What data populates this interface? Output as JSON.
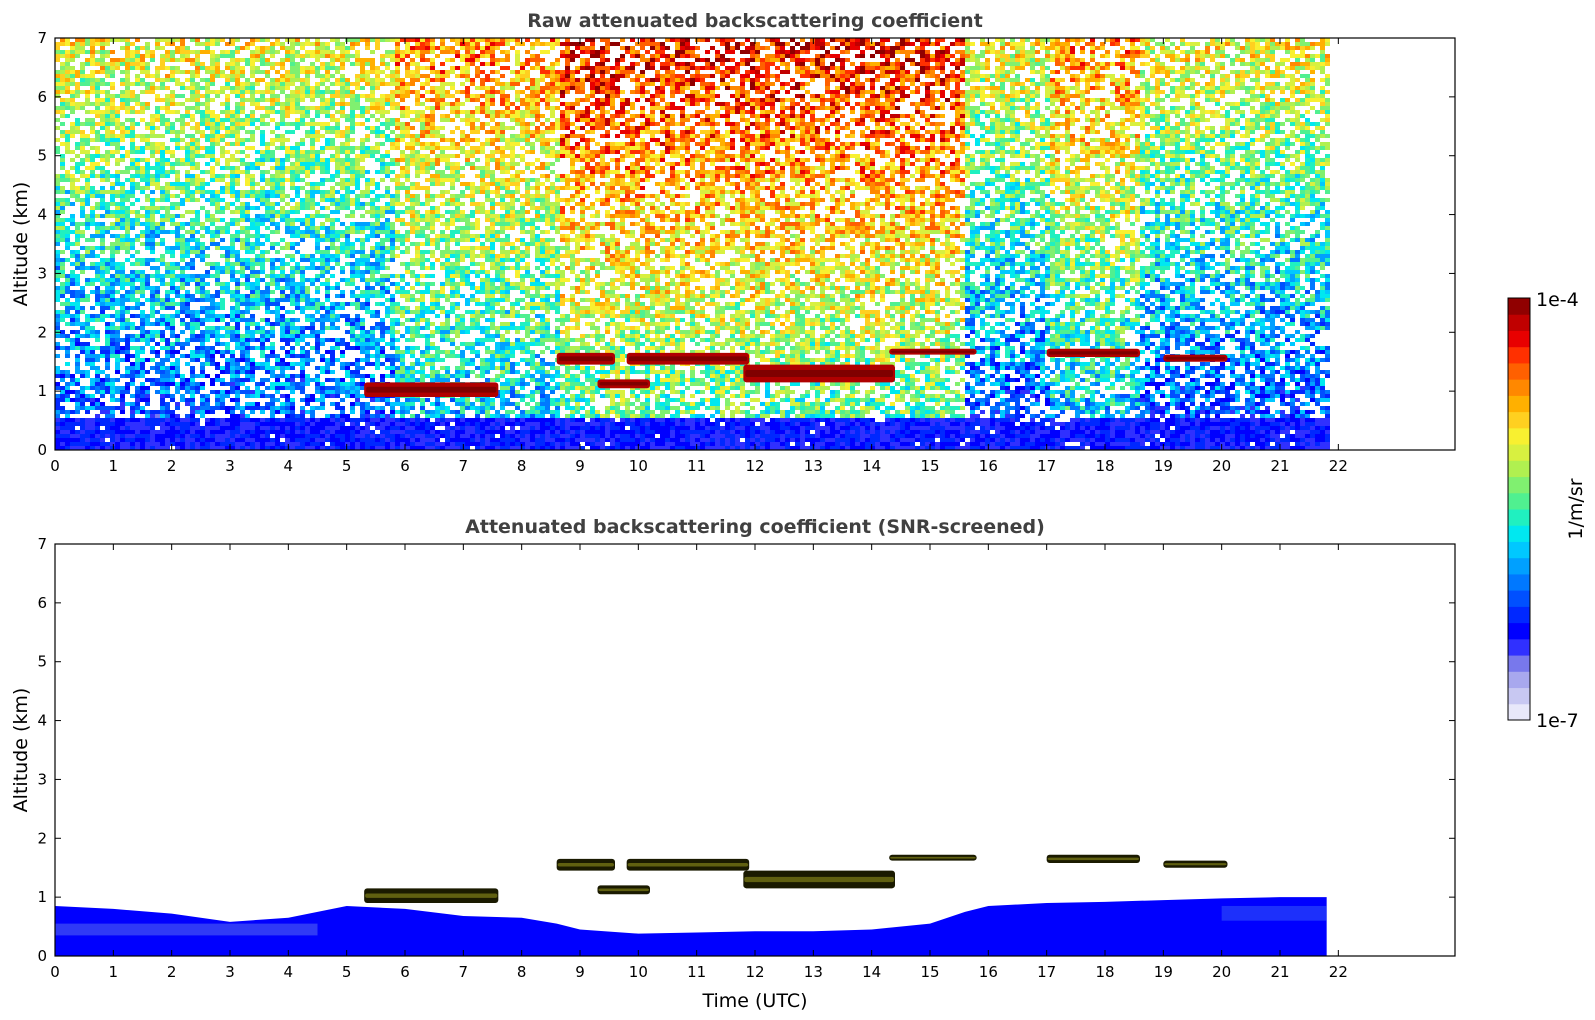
{
  "colorbar": {
    "max_label": "1e-4",
    "min_label": "1e-7",
    "unit_label": "1/m/sr",
    "colors": [
      "#e8e8fa",
      "#c8c8f2",
      "#a8a8ee",
      "#7878ec",
      "#3030ff",
      "#0000ff",
      "#0028ff",
      "#0050ff",
      "#0078ff",
      "#00a0ff",
      "#00c8ff",
      "#00e8f0",
      "#20f0c0",
      "#50f090",
      "#80f070",
      "#b0f050",
      "#d8f040",
      "#f8f030",
      "#ffd020",
      "#ffb000",
      "#ff8800",
      "#ff6000",
      "#ff3000",
      "#e80000",
      "#c00000",
      "#900000"
    ]
  },
  "chart_data": [
    {
      "type": "heatmap",
      "title": "Raw attenuated backscattering coefficient",
      "xlabel": "",
      "ylabel": "Altitude (km)",
      "xlim": [
        0,
        24
      ],
      "ylim": [
        0,
        7
      ],
      "xticks": [
        0,
        1,
        2,
        3,
        4,
        5,
        6,
        7,
        8,
        9,
        10,
        11,
        12,
        13,
        14,
        15,
        16,
        17,
        18,
        19,
        20,
        21,
        22
      ],
      "yticks": [
        0,
        1,
        2,
        3,
        4,
        5,
        6,
        7
      ],
      "data_extent_x": [
        0,
        21.8
      ],
      "background_regimes": [
        {
          "x": [
            0,
            5.8
          ],
          "level": "medium"
        },
        {
          "x": [
            5.8,
            8.6
          ],
          "level": "elevated"
        },
        {
          "x": [
            8.6,
            15.6
          ],
          "level": "high"
        },
        {
          "x": [
            15.6,
            17.0
          ],
          "level": "medium"
        },
        {
          "x": [
            17.0,
            18.6
          ],
          "level": "elevated"
        },
        {
          "x": [
            18.6,
            21.8
          ],
          "level": "medium"
        }
      ],
      "cloud_layers": [
        {
          "x": [
            5.3,
            7.6
          ],
          "y": [
            0.9,
            1.15
          ]
        },
        {
          "x": [
            8.6,
            9.6
          ],
          "y": [
            1.45,
            1.65
          ]
        },
        {
          "x": [
            9.8,
            11.9
          ],
          "y": [
            1.45,
            1.65
          ]
        },
        {
          "x": [
            11.8,
            14.4
          ],
          "y": [
            1.15,
            1.45
          ]
        },
        {
          "x": [
            9.3,
            10.2
          ],
          "y": [
            1.05,
            1.2
          ]
        },
        {
          "x": [
            14.3,
            15.8
          ],
          "y": [
            1.62,
            1.72
          ]
        },
        {
          "x": [
            17.0,
            18.6
          ],
          "y": [
            1.58,
            1.72
          ]
        },
        {
          "x": [
            19.0,
            20.1
          ],
          "y": [
            1.5,
            1.62
          ]
        }
      ]
    },
    {
      "type": "heatmap",
      "title": "Attenuated backscattering coefficient (SNR-screened)",
      "xlabel": "Time (UTC)",
      "ylabel": "Altitude (km)",
      "xlim": [
        0,
        24
      ],
      "ylim": [
        0,
        7
      ],
      "xticks": [
        0,
        1,
        2,
        3,
        4,
        5,
        6,
        7,
        8,
        9,
        10,
        11,
        12,
        13,
        14,
        15,
        16,
        17,
        18,
        19,
        20,
        21,
        22
      ],
      "yticks": [
        0,
        1,
        2,
        3,
        4,
        5,
        6,
        7
      ],
      "data_extent_x": [
        0,
        21.8
      ],
      "boundary_layer_top": [
        [
          0,
          0.85
        ],
        [
          1,
          0.8
        ],
        [
          2,
          0.72
        ],
        [
          3,
          0.58
        ],
        [
          4,
          0.65
        ],
        [
          5,
          0.85
        ],
        [
          6,
          0.8
        ],
        [
          7,
          0.68
        ],
        [
          8,
          0.65
        ],
        [
          8.6,
          0.55
        ],
        [
          9,
          0.45
        ],
        [
          10,
          0.38
        ],
        [
          11,
          0.4
        ],
        [
          12,
          0.42
        ],
        [
          13,
          0.42
        ],
        [
          14,
          0.45
        ],
        [
          15,
          0.55
        ],
        [
          15.6,
          0.75
        ],
        [
          16,
          0.85
        ],
        [
          17,
          0.9
        ],
        [
          18,
          0.92
        ],
        [
          19,
          0.95
        ],
        [
          20,
          0.98
        ],
        [
          21,
          1.0
        ],
        [
          21.8,
          1.0
        ]
      ],
      "cloud_layers": [
        {
          "x": [
            5.3,
            7.6
          ],
          "y": [
            0.9,
            1.15
          ]
        },
        {
          "x": [
            8.6,
            9.6
          ],
          "y": [
            1.45,
            1.65
          ]
        },
        {
          "x": [
            9.8,
            11.9
          ],
          "y": [
            1.45,
            1.65
          ]
        },
        {
          "x": [
            11.8,
            14.4
          ],
          "y": [
            1.15,
            1.45
          ]
        },
        {
          "x": [
            9.3,
            10.2
          ],
          "y": [
            1.05,
            1.2
          ]
        },
        {
          "x": [
            14.3,
            15.8
          ],
          "y": [
            1.62,
            1.72
          ]
        },
        {
          "x": [
            17.0,
            18.6
          ],
          "y": [
            1.58,
            1.72
          ]
        },
        {
          "x": [
            19.0,
            20.1
          ],
          "y": [
            1.5,
            1.62
          ]
        }
      ]
    }
  ]
}
